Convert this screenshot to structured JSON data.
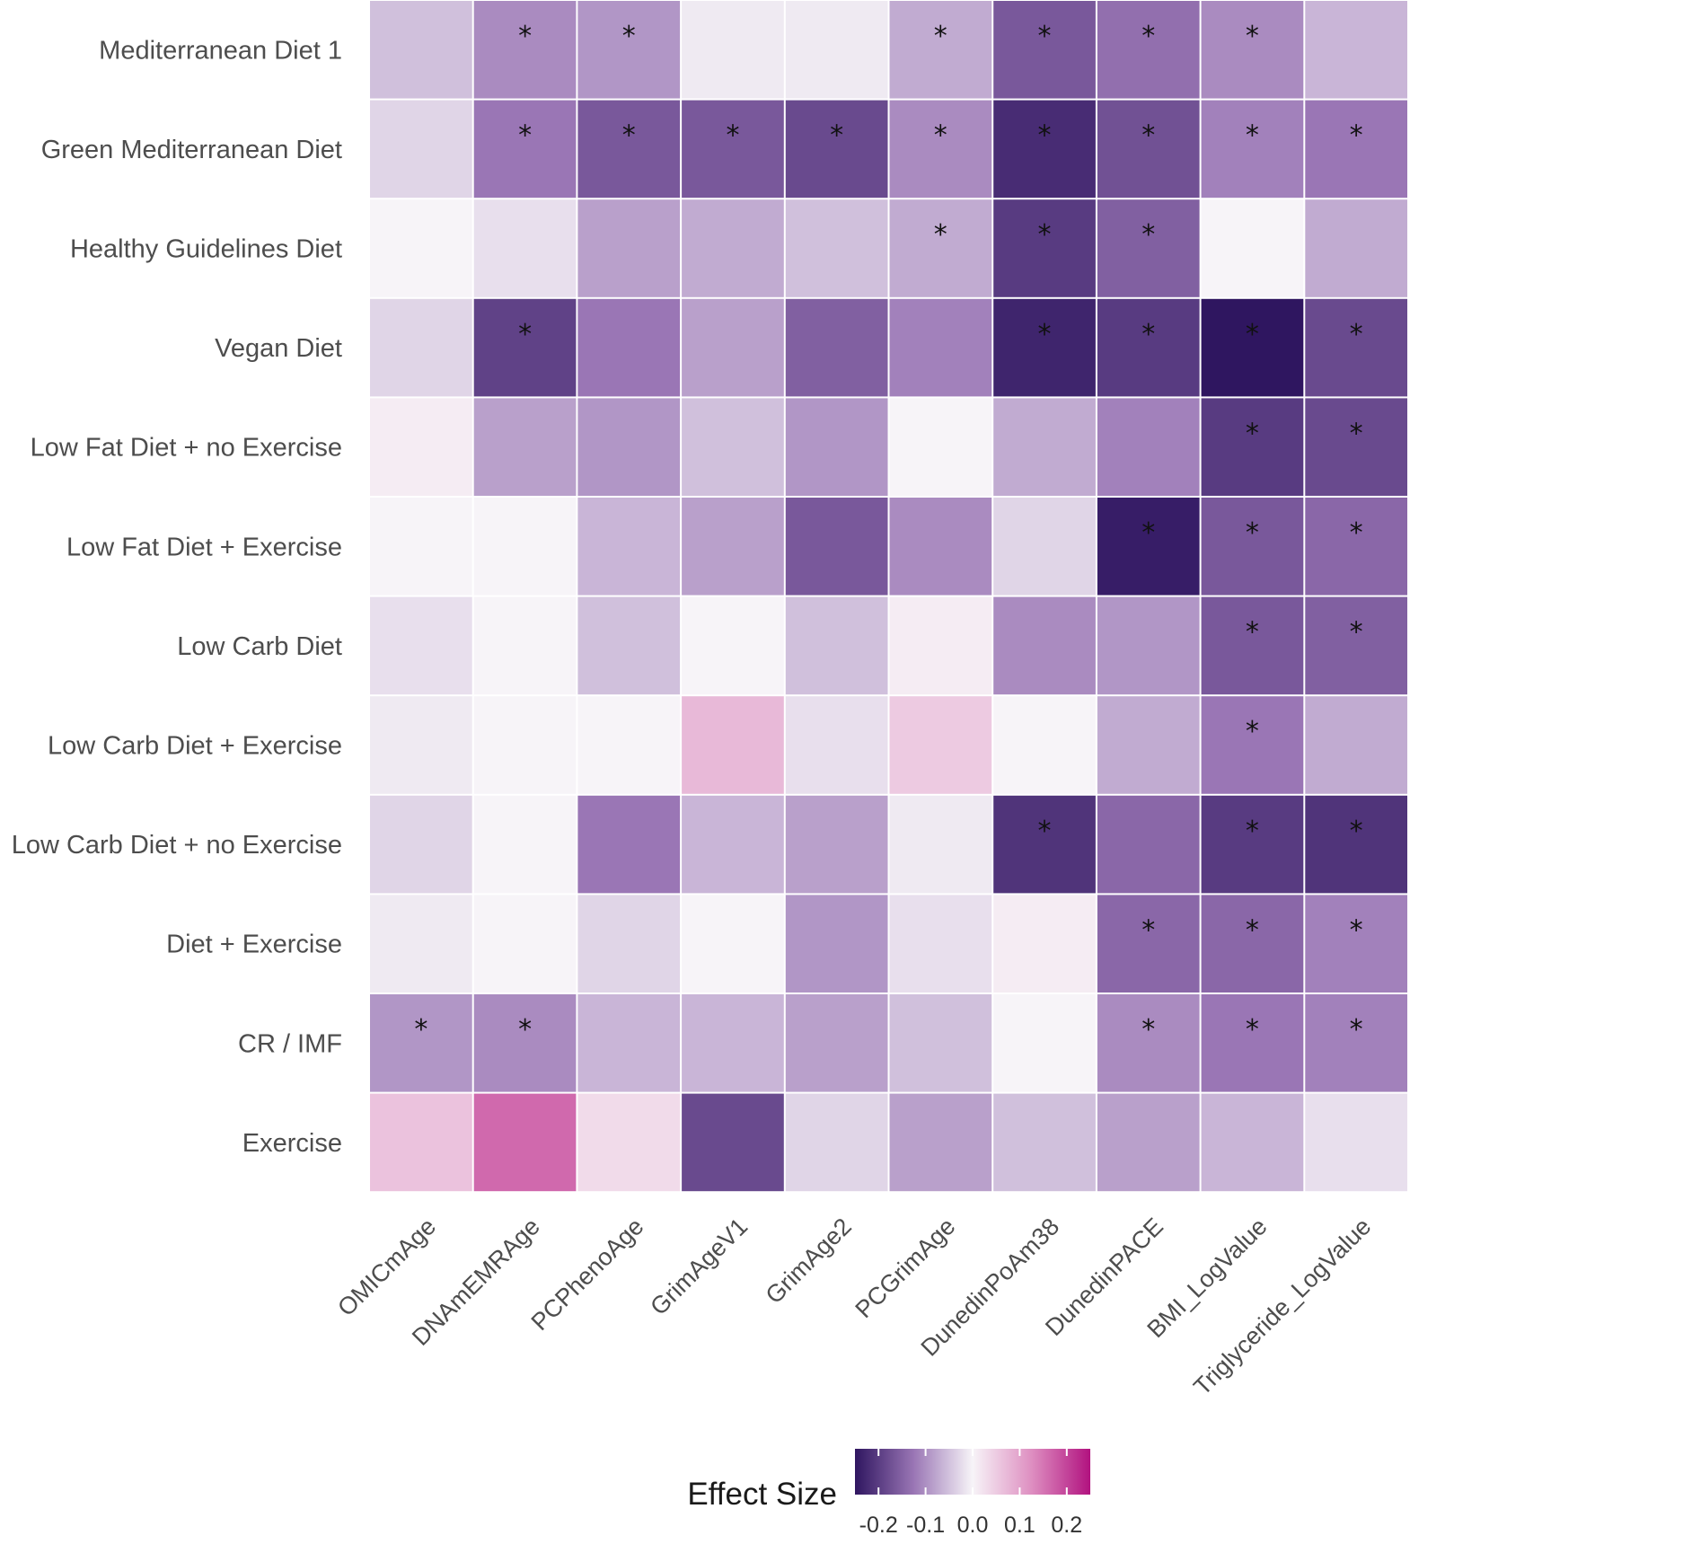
{
  "chart_data": {
    "type": "heatmap",
    "title": "",
    "rows": [
      "Mediterranean Diet 1",
      "Green Mediterranean Diet",
      "Healthy Guidelines Diet",
      "Vegan Diet",
      "Low Fat Diet + no Exercise",
      "Low Fat Diet + Exercise",
      "Low Carb Diet",
      "Low Carb Diet + Exercise",
      "Low Carb Diet + no Exercise",
      "Diet + Exercise",
      "CR / IMF",
      "Exercise"
    ],
    "columns": [
      "OMICmAge",
      "DNAmEMRAge",
      "PCPhenoAge",
      "GrimAgeV1",
      "GrimAge2",
      "PCGrimAge",
      "DunedinPoAm38",
      "DunedinPACE",
      "BMI_LogValue",
      "Triglyceride_LogValue"
    ],
    "values": [
      [
        -0.05,
        -0.1,
        -0.09,
        -0.01,
        -0.01,
        -0.07,
        -0.16,
        -0.13,
        -0.1,
        -0.06
      ],
      [
        -0.03,
        -0.12,
        -0.16,
        -0.16,
        -0.18,
        -0.1,
        -0.22,
        -0.17,
        -0.11,
        -0.12
      ],
      [
        0.0,
        -0.02,
        -0.08,
        -0.07,
        -0.05,
        -0.07,
        -0.2,
        -0.15,
        0.0,
        -0.07
      ],
      [
        -0.03,
        -0.19,
        -0.12,
        -0.08,
        -0.15,
        -0.11,
        -0.23,
        -0.2,
        -0.25,
        -0.18
      ],
      [
        0.01,
        -0.08,
        -0.09,
        -0.05,
        -0.09,
        0.0,
        -0.07,
        -0.11,
        -0.2,
        -0.18
      ],
      [
        0.0,
        0.0,
        -0.06,
        -0.08,
        -0.16,
        -0.1,
        -0.03,
        -0.24,
        -0.16,
        -0.14
      ],
      [
        -0.02,
        0.0,
        -0.05,
        0.0,
        -0.05,
        0.01,
        -0.1,
        -0.09,
        -0.16,
        -0.15
      ],
      [
        -0.01,
        0.0,
        0.0,
        0.07,
        -0.02,
        0.05,
        0.0,
        -0.07,
        -0.12,
        -0.07
      ],
      [
        -0.03,
        0.0,
        -0.12,
        -0.06,
        -0.08,
        -0.01,
        -0.21,
        -0.14,
        -0.2,
        -0.21
      ],
      [
        -0.01,
        0.0,
        -0.03,
        0.0,
        -0.09,
        -0.02,
        0.01,
        -0.14,
        -0.14,
        -0.11
      ],
      [
        -0.09,
        -0.1,
        -0.06,
        -0.06,
        -0.08,
        -0.05,
        0.0,
        -0.1,
        -0.12,
        -0.11
      ],
      [
        0.06,
        0.16,
        0.03,
        -0.18,
        -0.03,
        -0.08,
        -0.05,
        -0.08,
        -0.06,
        -0.02
      ]
    ],
    "significant": [
      [
        false,
        true,
        true,
        false,
        false,
        true,
        true,
        true,
        true,
        false
      ],
      [
        false,
        true,
        true,
        true,
        true,
        true,
        true,
        true,
        true,
        true
      ],
      [
        false,
        false,
        false,
        false,
        false,
        true,
        true,
        true,
        false,
        false
      ],
      [
        false,
        true,
        false,
        false,
        false,
        false,
        true,
        true,
        true,
        true
      ],
      [
        false,
        false,
        false,
        false,
        false,
        false,
        false,
        false,
        true,
        true
      ],
      [
        false,
        false,
        false,
        false,
        false,
        false,
        false,
        true,
        true,
        true
      ],
      [
        false,
        false,
        false,
        false,
        false,
        false,
        false,
        false,
        true,
        true
      ],
      [
        false,
        false,
        false,
        false,
        false,
        false,
        false,
        false,
        true,
        false
      ],
      [
        false,
        false,
        false,
        false,
        false,
        false,
        true,
        false,
        true,
        true
      ],
      [
        false,
        false,
        false,
        false,
        false,
        false,
        false,
        true,
        true,
        true
      ],
      [
        true,
        true,
        false,
        false,
        false,
        false,
        false,
        true,
        true,
        true
      ],
      [
        false,
        false,
        false,
        false,
        false,
        false,
        false,
        false,
        false,
        false
      ]
    ],
    "significance_marker": "*",
    "legend": {
      "title": "Effect Size",
      "ticks": [
        "-0.2",
        "-0.1",
        "0.0",
        "0.1",
        "0.2"
      ],
      "range": [
        -0.25,
        0.25
      ],
      "placement": "bottom",
      "colors": {
        "low": "#2f1660",
        "mid_low": "#9a76b5",
        "mid": "#f7f4f8",
        "mid_high": "#de8fc1",
        "high": "#b1127f"
      }
    }
  }
}
